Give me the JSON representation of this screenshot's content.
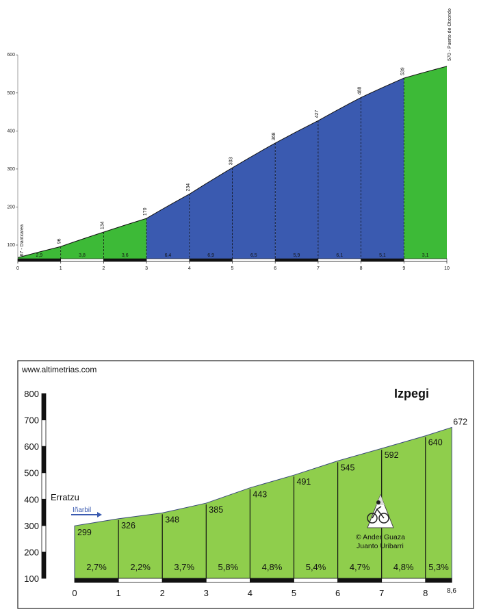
{
  "chart_data": [
    {
      "type": "area",
      "title": "",
      "xlabel": "",
      "ylabel": "",
      "xlim": [
        0,
        10
      ],
      "ylim": [
        60,
        600
      ],
      "x_ticks": [
        "0",
        "1",
        "2",
        "3",
        "4",
        "5",
        "6",
        "7",
        "8",
        "9",
        "10"
      ],
      "y_ticks": [
        "100",
        "200",
        "300",
        "400",
        "500",
        "600"
      ],
      "elevation_points": [
        {
          "km": 0,
          "alt": 67,
          "label": "67 - Dantxarea"
        },
        {
          "km": 1,
          "alt": 96,
          "label": "96"
        },
        {
          "km": 2,
          "alt": 134,
          "label": "134"
        },
        {
          "km": 3,
          "alt": 170,
          "label": "170"
        },
        {
          "km": 4,
          "alt": 234,
          "label": "234"
        },
        {
          "km": 5,
          "alt": 303,
          "label": "303"
        },
        {
          "km": 6,
          "alt": 368,
          "label": "368"
        },
        {
          "km": 7,
          "alt": 427,
          "label": "427"
        },
        {
          "km": 8,
          "alt": 488,
          "label": "488"
        },
        {
          "km": 9,
          "alt": 539,
          "label": "539"
        },
        {
          "km": 10,
          "alt": 570,
          "label": "570 - Puerto de Otxondo"
        }
      ],
      "segment_gradients": [
        "2,9",
        "3,8",
        "3,6",
        "6,4",
        "6,9",
        "6,5",
        "5,9",
        "6,1",
        "5,1",
        "3,1"
      ],
      "segment_colors": [
        "#3dba37",
        "#3dba37",
        "#3dba37",
        "#3a5ab0",
        "#3a5ab0",
        "#3a5ab0",
        "#3a5ab0",
        "#3a5ab0",
        "#3a5ab0",
        "#3dba37"
      ]
    },
    {
      "type": "area",
      "title": "Izpegi",
      "watermark": "www.altimetrias.com",
      "xlabel": "",
      "ylabel": "",
      "xlim": [
        0,
        8.6
      ],
      "ylim": [
        100,
        800
      ],
      "x_ticks": [
        "0",
        "1",
        "2",
        "3",
        "4",
        "5",
        "6",
        "7",
        "8"
      ],
      "x_end_label": "8,6",
      "y_ticks": [
        "100",
        "200",
        "300",
        "400",
        "500",
        "600",
        "700",
        "800"
      ],
      "start_place": "Erratzu",
      "road_sign": "Iñarbil",
      "elevation_profile": [
        [
          0,
          299
        ],
        [
          1,
          326
        ],
        [
          2,
          348
        ],
        [
          3,
          385
        ],
        [
          4,
          443
        ],
        [
          5,
          491
        ],
        [
          6,
          545
        ],
        [
          7,
          592
        ],
        [
          8,
          640
        ],
        [
          8.6,
          672
        ]
      ],
      "value_labels": [
        {
          "km": 0,
          "alt": 299,
          "text": "299"
        },
        {
          "km": 1,
          "alt": 326,
          "text": "326"
        },
        {
          "km": 2,
          "alt": 348,
          "text": "348"
        },
        {
          "km": 3,
          "alt": 385,
          "text": "385"
        },
        {
          "km": 4,
          "alt": 443,
          "text": "443"
        },
        {
          "km": 5,
          "alt": 491,
          "text": "491"
        },
        {
          "km": 6,
          "alt": 545,
          "text": "545"
        },
        {
          "km": 7,
          "alt": 592,
          "text": "592"
        },
        {
          "km": 8,
          "alt": 640,
          "text": "640"
        },
        {
          "km": 8.6,
          "alt": 672,
          "text": "672"
        }
      ],
      "segment_gradients": [
        "2,7%",
        "2,2%",
        "3,7%",
        "5,8%",
        "4,8%",
        "5,4%",
        "4,7%",
        "4,8%",
        "5,3%"
      ],
      "fill_color": "#8fce4c",
      "credits": [
        "© Ander Guaza",
        "Juanto Uribarri"
      ]
    }
  ]
}
